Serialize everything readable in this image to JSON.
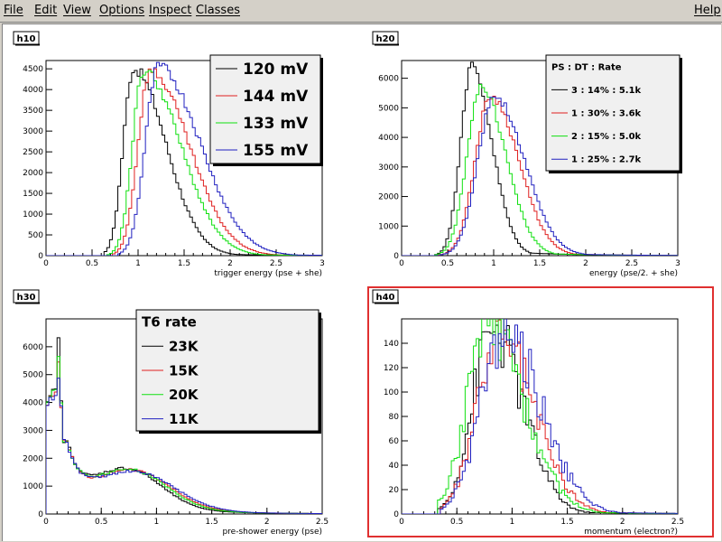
{
  "menu": {
    "file": "File",
    "edit": "Edit",
    "view": "View",
    "options": "Options",
    "inspect": "Inspect",
    "classes": "Classes",
    "help": "Help"
  },
  "colors": {
    "black": "#000000",
    "red": "#e02020",
    "green": "#10e010",
    "blue": "#2020c0",
    "selected": "#e03030"
  },
  "chart_data": [
    {
      "type": "line",
      "title": "h10",
      "xlabel": "trigger energy (pse + she)",
      "ylabel": "",
      "xlim": [
        0,
        3
      ],
      "ylim": [
        0,
        4700
      ],
      "xticks": [
        "0",
        "0.5",
        "1",
        "1.5",
        "2",
        "2.5",
        "3"
      ],
      "yticks": [
        "0",
        "500",
        "1000",
        "1500",
        "2000",
        "2500",
        "3000",
        "3500",
        "4000",
        "4500"
      ],
      "legend": {
        "placement": "top-right",
        "title": ""
      },
      "series": [
        {
          "name": "120 mV",
          "color": "black",
          "shape": "peak",
          "params": {
            "mu": 0.95,
            "height": 4500,
            "sl": 0.11,
            "sr": 0.35,
            "onset": 0.62
          }
        },
        {
          "name": "144 mV",
          "color": "red",
          "shape": "peak",
          "params": {
            "mu": 1.13,
            "height": 4450,
            "sl": 0.13,
            "sr": 0.42,
            "onset": 0.72
          }
        },
        {
          "name": "133 mV",
          "color": "green",
          "shape": "peak",
          "params": {
            "mu": 1.06,
            "height": 4450,
            "sl": 0.12,
            "sr": 0.4,
            "onset": 0.67
          }
        },
        {
          "name": "155 mV",
          "color": "blue",
          "shape": "peak",
          "params": {
            "mu": 1.22,
            "height": 4550,
            "sl": 0.14,
            "sr": 0.45,
            "onset": 0.78
          }
        }
      ]
    },
    {
      "type": "line",
      "title": "h20",
      "xlabel": "energy (pse/2. + she)",
      "ylabel": "",
      "xlim": [
        0,
        3
      ],
      "ylim": [
        0,
        6600
      ],
      "xticks": [
        "0",
        "0.5",
        "1",
        "1.5",
        "2",
        "2.5",
        "3"
      ],
      "yticks": [
        "0",
        "1000",
        "2000",
        "3000",
        "4000",
        "5000",
        "6000"
      ],
      "legend": {
        "placement": "top-right",
        "title": "PS  :  DT  :  Rate"
      },
      "series": [
        {
          "name": "3  :  14%  :  5.1k",
          "color": "black",
          "shape": "peak",
          "params": {
            "mu": 0.76,
            "height": 6400,
            "sl": 0.12,
            "sr": 0.22,
            "onset": 0.35
          }
        },
        {
          "name": "1  :  30%  :  3.6k",
          "color": "red",
          "shape": "peak",
          "params": {
            "mu": 0.97,
            "height": 5400,
            "sl": 0.17,
            "sr": 0.3,
            "onset": 0.4
          }
        },
        {
          "name": "2  :  15%  :  5.0k",
          "color": "green",
          "shape": "peak",
          "params": {
            "mu": 0.86,
            "height": 5700,
            "sl": 0.15,
            "sr": 0.27,
            "onset": 0.37
          }
        },
        {
          "name": "1  :  25%  :  2.7k",
          "color": "blue",
          "shape": "peak",
          "params": {
            "mu": 1.01,
            "height": 5400,
            "sl": 0.18,
            "sr": 0.32,
            "onset": 0.42
          }
        }
      ]
    },
    {
      "type": "line",
      "title": "h30",
      "xlabel": "pre-shower energy (pse)",
      "ylabel": "",
      "xlim": [
        0,
        2.5
      ],
      "ylim": [
        0,
        7000
      ],
      "xticks": [
        "0",
        "0.5",
        "1",
        "1.5",
        "2",
        "2.5"
      ],
      "yticks": [
        "0",
        "1000",
        "2000",
        "3000",
        "4000",
        "5000",
        "6000"
      ],
      "legend": {
        "placement": "top-right",
        "title": "T6 rate"
      },
      "series": [
        {
          "name": "23K",
          "color": "black",
          "shape": "preshower",
          "params": {
            "spike": 6500,
            "spike2": 4400,
            "b": 1500,
            "bmu": 0.75,
            "bs": 0.3
          }
        },
        {
          "name": "15K",
          "color": "red",
          "shape": "preshower",
          "params": {
            "spike": 5600,
            "spike2": 4300,
            "b": 1450,
            "bmu": 0.8,
            "bs": 0.33
          }
        },
        {
          "name": "20K",
          "color": "green",
          "shape": "preshower",
          "params": {
            "spike": 5800,
            "spike2": 4400,
            "b": 1470,
            "bmu": 0.78,
            "bs": 0.32
          }
        },
        {
          "name": "11K",
          "color": "blue",
          "shape": "preshower",
          "params": {
            "spike": 5000,
            "spike2": 4200,
            "b": 1420,
            "bmu": 0.82,
            "bs": 0.35
          }
        }
      ]
    },
    {
      "type": "line",
      "title": "h40",
      "xlabel": "momentum (electron?)",
      "ylabel": "",
      "xlim": [
        0,
        2.5
      ],
      "ylim": [
        0,
        160
      ],
      "xticks": [
        "0",
        "0.5",
        "1",
        "1.5",
        "2",
        "2.5"
      ],
      "yticks": [
        "0",
        "20",
        "40",
        "60",
        "80",
        "100",
        "120",
        "140"
      ],
      "legend": null,
      "series": [
        {
          "name": "",
          "color": "black",
          "shape": "peak",
          "params": {
            "mu": 0.82,
            "height": 150,
            "sl": 0.18,
            "sr": 0.28,
            "onset": 0.33,
            "noise": 0.18
          }
        },
        {
          "name": "",
          "color": "red",
          "shape": "peak",
          "params": {
            "mu": 0.88,
            "height": 145,
            "sl": 0.2,
            "sr": 0.32,
            "onset": 0.35,
            "noise": 0.18
          }
        },
        {
          "name": "",
          "color": "green",
          "shape": "peak",
          "params": {
            "mu": 0.78,
            "height": 152,
            "sl": 0.19,
            "sr": 0.33,
            "onset": 0.33,
            "noise": 0.18
          }
        },
        {
          "name": "",
          "color": "blue",
          "shape": "peak",
          "params": {
            "mu": 0.92,
            "height": 148,
            "sl": 0.21,
            "sr": 0.34,
            "onset": 0.36,
            "noise": 0.18
          }
        }
      ]
    }
  ]
}
